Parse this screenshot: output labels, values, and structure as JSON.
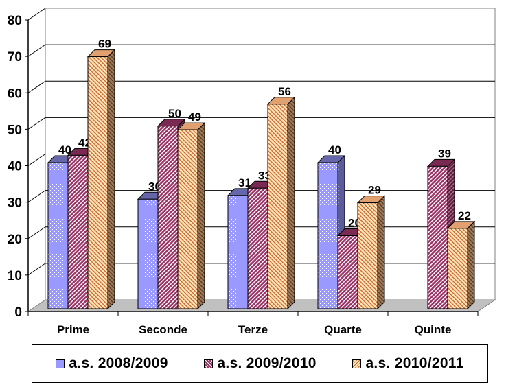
{
  "chart_data": {
    "type": "bar",
    "style": "3d-clustered-column",
    "title": "",
    "xlabel": "",
    "ylabel": "",
    "categories": [
      "Prime",
      "Seconde",
      "Terze",
      "Quarte",
      "Quinte"
    ],
    "series": [
      {
        "name": "a.s. 2008/2009",
        "values": [
          40,
          30,
          31,
          40,
          null
        ],
        "color": "#9999FF",
        "pattern": "dots"
      },
      {
        "name": "a.s. 2009/2010",
        "values": [
          42,
          50,
          33,
          20,
          39
        ],
        "color": "#993366",
        "pattern": "diagonal-stripes"
      },
      {
        "name": "a.s. 2010/2011",
        "values": [
          69,
          49,
          56,
          29,
          22
        ],
        "color": "#FFCC99",
        "pattern": "diagonal-stripes"
      }
    ],
    "ylim": [
      0,
      80
    ],
    "yticks": [
      0,
      10,
      20,
      30,
      40,
      50,
      60,
      70,
      80
    ],
    "grid": true,
    "data_labels": true,
    "legend_position": "bottom"
  },
  "legend": {
    "items": [
      {
        "label": "a.s. 2008/2009",
        "color": "#9999FF"
      },
      {
        "label": "a.s. 2009/2010",
        "color": "#993366"
      },
      {
        "label": "a.s. 2010/2011",
        "color": "#FFCC99"
      }
    ]
  }
}
